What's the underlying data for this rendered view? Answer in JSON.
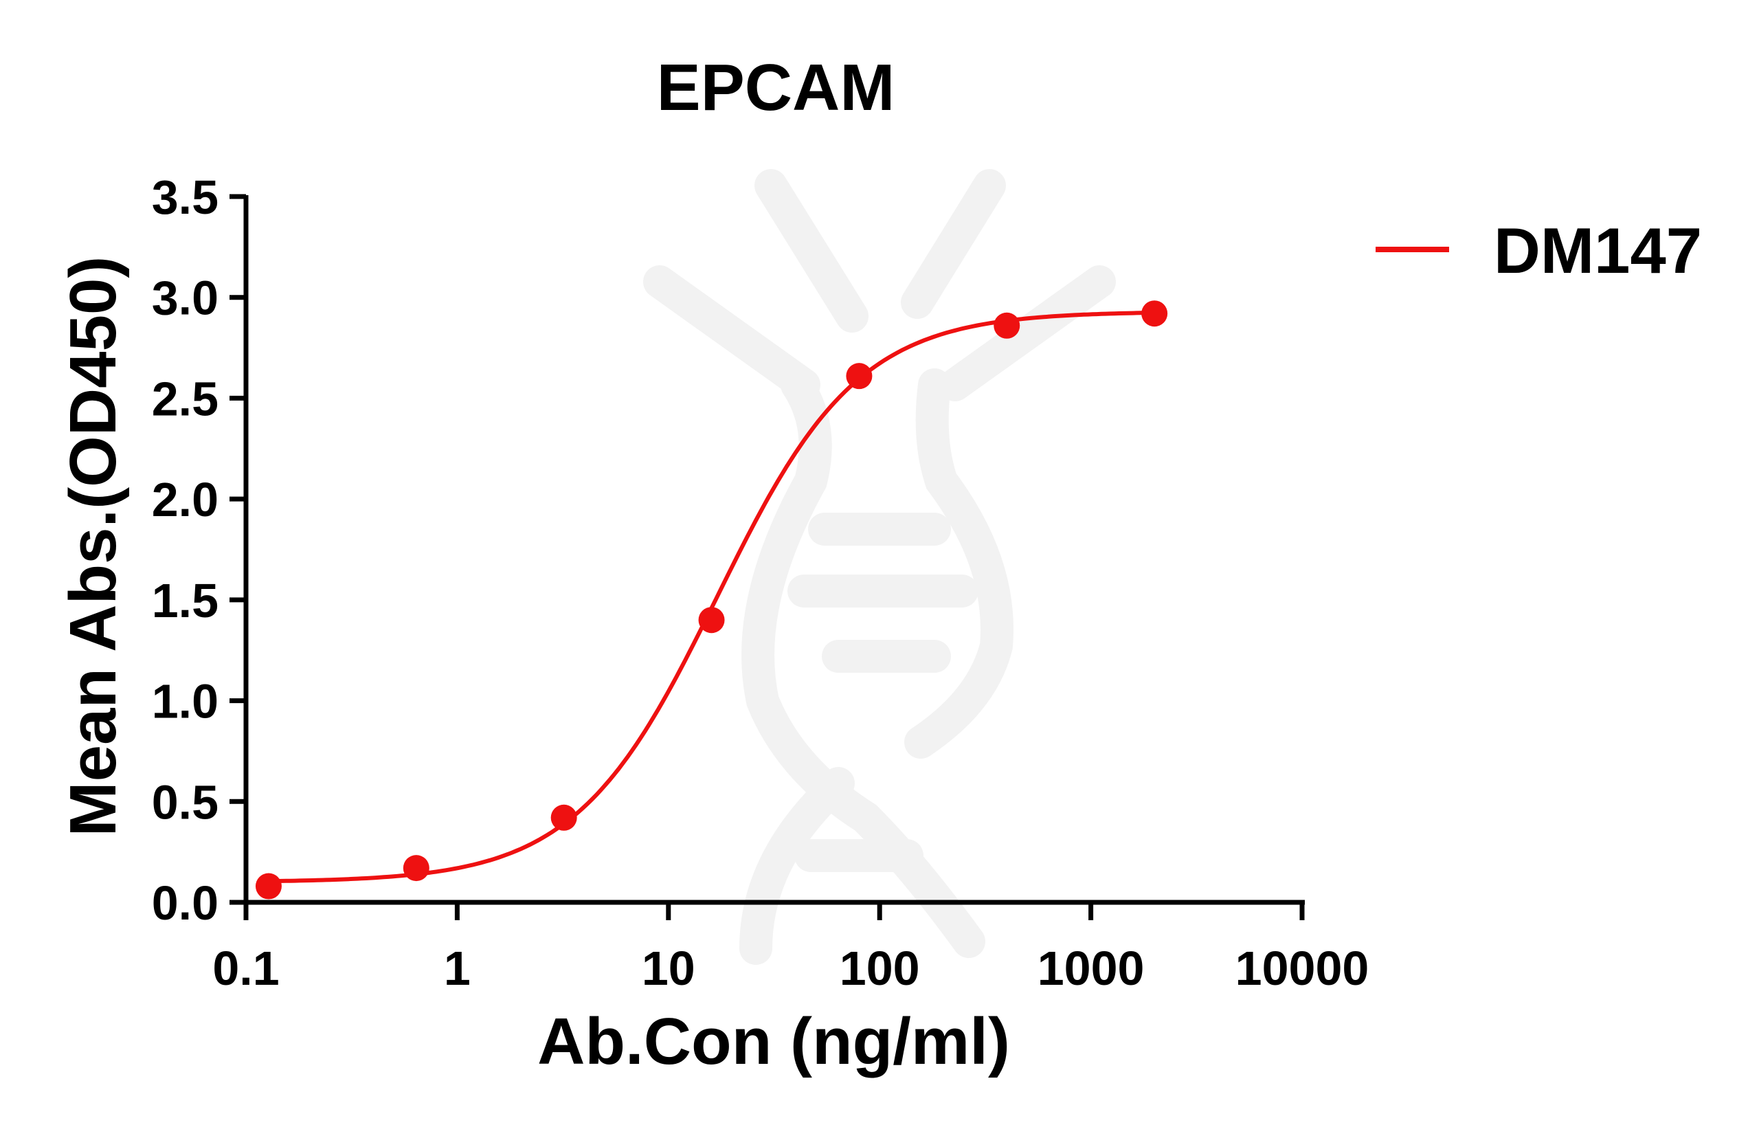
{
  "chart_data": {
    "type": "line",
    "title": "EPCAM",
    "xlabel": "Ab.Con (ng/ml)",
    "ylabel": "Mean Abs.(OD450)",
    "x_scale": "log",
    "xlim": [
      0.1,
      10000
    ],
    "ylim": [
      0,
      3.5
    ],
    "x_ticks": [
      "0.1",
      "1",
      "10",
      "100",
      "1000",
      "10000"
    ],
    "x_tick_values": [
      0.1,
      1,
      10,
      100,
      1000,
      10000
    ],
    "y_ticks": [
      "0.0",
      "0.5",
      "1.0",
      "1.5",
      "2.0",
      "2.5",
      "3.0",
      "3.5"
    ],
    "y_tick_values": [
      0,
      0.5,
      1.0,
      1.5,
      2.0,
      2.5,
      3.0,
      3.5
    ],
    "grid": false,
    "legend_placement": "top-right",
    "series": [
      {
        "name": "DM147",
        "color": "#ee1111",
        "fit": "sigmoidal curve",
        "x": [
          0.128,
          0.64,
          3.2,
          16,
          80,
          400,
          2000
        ],
        "y": [
          0.08,
          0.17,
          0.42,
          1.4,
          2.61,
          2.86,
          2.92
        ]
      }
    ]
  }
}
